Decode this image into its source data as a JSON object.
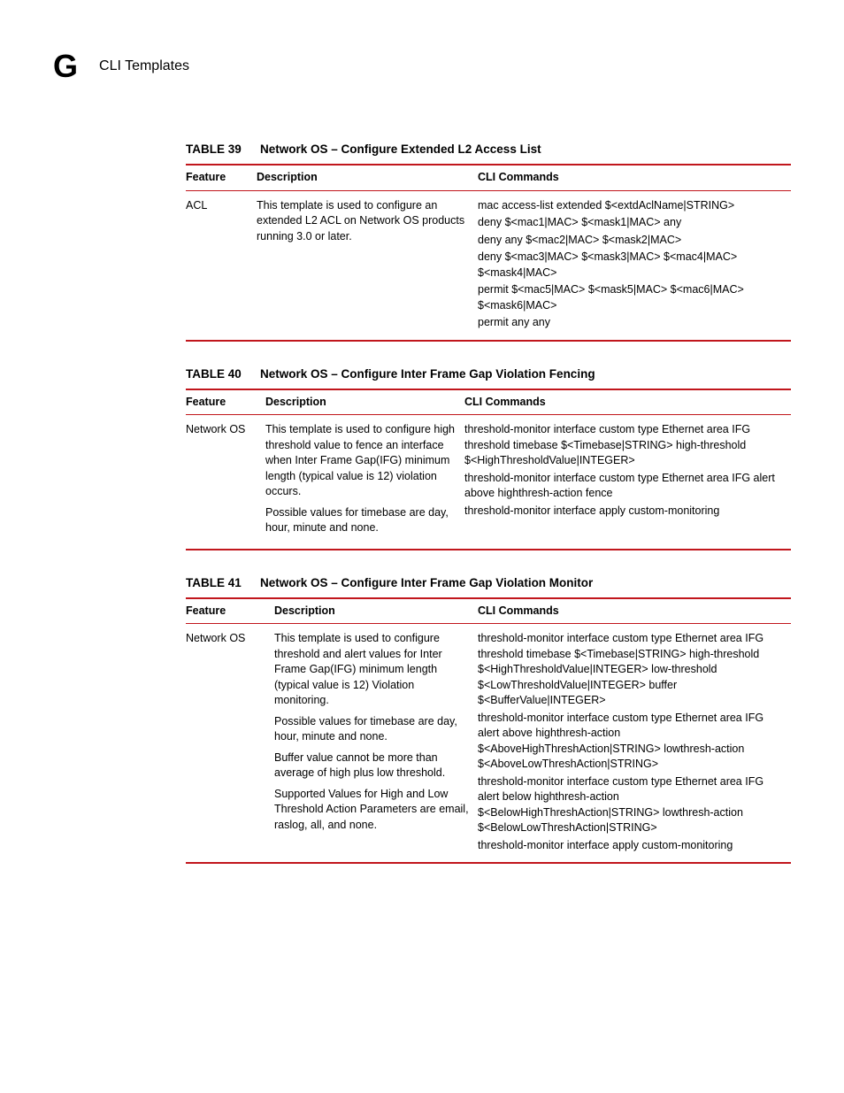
{
  "header": {
    "appendix_letter": "G",
    "section_title": "CLI Templates"
  },
  "tables": [
    {
      "number": "TABLE 39",
      "title": "Network OS – Configure Extended L2 Access List",
      "col_widths": [
        "80px",
        "250px",
        "auto"
      ],
      "headers": [
        "Feature",
        "Description",
        "CLI Commands"
      ],
      "row": {
        "feature": "ACL",
        "description": [
          "This template is used to configure an extended L2 ACL on Network OS products running 3.0 or later."
        ],
        "cli": [
          "mac access-list extended $<extdAclName|STRING>",
          "deny $<mac1|MAC> $<mask1|MAC> any",
          "deny any $<mac2|MAC> $<mask2|MAC>",
          "deny $<mac3|MAC> $<mask3|MAC> $<mac4|MAC> $<mask4|MAC>",
          "permit $<mac5|MAC> $<mask5|MAC> $<mac6|MAC> $<mask6|MAC>",
          "permit any any"
        ]
      }
    },
    {
      "number": "TABLE 40",
      "title": "Network OS – Configure Inter Frame Gap Violation Fencing",
      "col_widths": [
        "90px",
        "225px",
        "auto"
      ],
      "headers": [
        "Feature",
        "Description",
        "CLI Commands"
      ],
      "row": {
        "feature": "Network OS",
        "description": [
          "This template is used to configure high threshold value to fence an interface when Inter Frame Gap(IFG) minimum length (typical value is 12) violation occurs.",
          "Possible values for timebase are day, hour, minute and none."
        ],
        "cli": [
          "threshold-monitor interface custom type Ethernet area IFG threshold timebase $<Timebase|STRING> high-threshold $<HighThresholdValue|INTEGER>",
          "threshold-monitor interface custom type Ethernet area IFG alert above highthresh-action fence",
          "threshold-monitor interface apply custom-monitoring"
        ]
      }
    },
    {
      "number": "TABLE 41",
      "title": "Network OS – Configure Inter Frame Gap Violation Monitor",
      "col_widths": [
        "100px",
        "230px",
        "auto"
      ],
      "headers": [
        "Feature",
        "Description",
        "CLI Commands"
      ],
      "row": {
        "feature": "Network OS",
        "description": [
          "This template is used to configure threshold and alert values for Inter Frame Gap(IFG) minimum length (typical value is 12) Violation monitoring.",
          "Possible values for timebase are day, hour, minute and none.",
          "Buffer value cannot be more than average of high plus low threshold.",
          "Supported Values for High and Low Threshold Action Parameters are email, raslog, all, and none."
        ],
        "cli": [
          "threshold-monitor interface custom type Ethernet area IFG threshold timebase $<Timebase|STRING> high-threshold $<HighThresholdValue|INTEGER> low-threshold $<LowThresholdValue|INTEGER> buffer $<BufferValue|INTEGER>",
          "threshold-monitor interface custom type Ethernet area IFG alert above highthresh-action $<AboveHighThreshAction|STRING> lowthresh-action $<AboveLowThreshAction|STRING>",
          "threshold-monitor interface custom type Ethernet area IFG alert below highthresh-action $<BelowHighThreshAction|STRING> lowthresh-action $<BelowLowThreshAction|STRING>",
          "threshold-monitor interface apply custom-monitoring"
        ]
      }
    }
  ]
}
